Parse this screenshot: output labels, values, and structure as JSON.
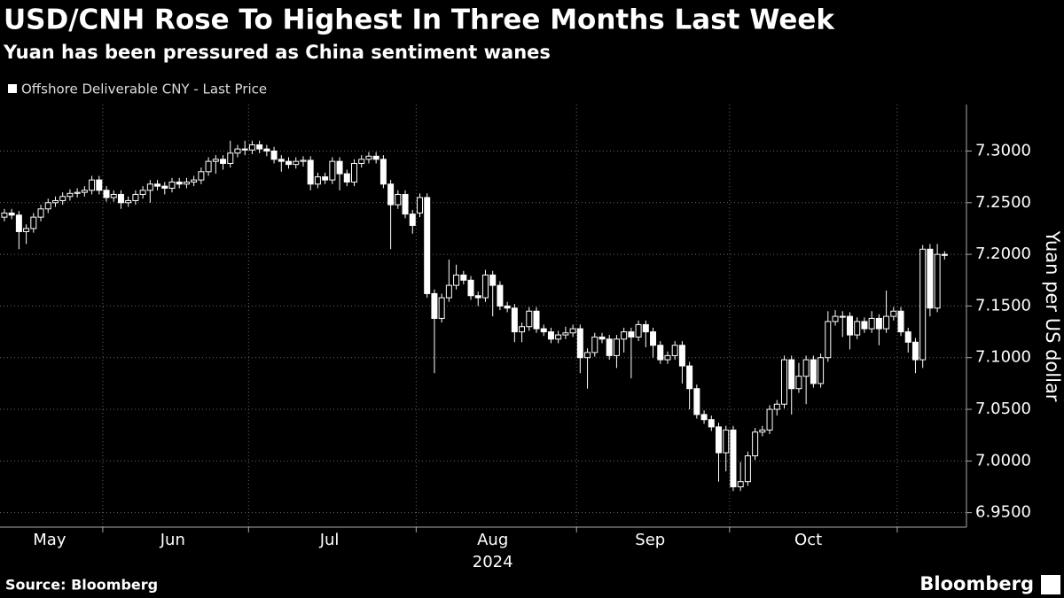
{
  "chart_data": {
    "type": "candlestick",
    "title": "USD/CNH Rose To Highest In Three Months Last Week",
    "subtitle": "Yuan has been pressured as China sentiment wanes",
    "y_label": "Yuan per US dollar",
    "source": "Source: Bloomberg",
    "brand": "Bloomberg",
    "grid": true,
    "xlim": [
      -0.6,
      132
    ],
    "ylim": [
      6.936,
      7.345
    ],
    "yticks": [
      {
        "value": 6.95,
        "label": "6.9500"
      },
      {
        "value": 7.0,
        "label": "7.0000"
      },
      {
        "value": 7.05,
        "label": "7.0500"
      },
      {
        "value": 7.1,
        "label": "7.1000"
      },
      {
        "value": 7.15,
        "label": "7.1500"
      },
      {
        "value": 7.2,
        "label": "7.2000"
      },
      {
        "value": 7.25,
        "label": "7.2500"
      },
      {
        "value": 7.3,
        "label": "7.3000"
      }
    ],
    "xticks": [
      13.5,
      33.5,
      56.5,
      78.5,
      99.5,
      122.5
    ],
    "xlabels": [
      {
        "value": 6.2,
        "label": "May"
      },
      {
        "value": 23.1,
        "label": "Jun"
      },
      {
        "value": 44.6,
        "label": "Jul"
      },
      {
        "value": 67,
        "label": "Aug"
      },
      {
        "value": 88.6,
        "label": "Sep"
      },
      {
        "value": 110.3,
        "label": "Oct"
      }
    ],
    "year_label": {
      "value": 67,
      "label": "2024"
    },
    "series": [
      {
        "name": "Offshore Deliverable CNY - Last Price",
        "color": "#ffffff",
        "open": [
          7.236,
          7.24,
          7.238,
          7.222,
          7.225,
          7.236,
          7.244,
          7.25,
          7.252,
          7.256,
          7.259,
          7.26,
          7.262,
          7.272,
          7.262,
          7.255,
          7.258,
          7.25,
          7.252,
          7.258,
          7.262,
          7.268,
          7.266,
          7.264,
          7.27,
          7.268,
          7.27,
          7.272,
          7.28,
          7.29,
          7.292,
          7.288,
          7.298,
          7.302,
          7.301,
          7.306,
          7.302,
          7.3,
          7.292,
          7.29,
          7.287,
          7.29,
          7.291,
          7.268,
          7.275,
          7.272,
          7.29,
          7.278,
          7.27,
          7.288,
          7.292,
          7.295,
          7.292,
          7.268,
          7.248,
          7.258,
          7.239,
          7.24,
          7.255,
          7.162,
          7.138,
          7.158,
          7.17,
          7.18,
          7.175,
          7.16,
          7.158,
          7.18,
          7.17,
          7.15,
          7.148,
          7.125,
          7.13,
          7.145,
          7.128,
          7.125,
          7.118,
          7.122,
          7.124,
          7.128,
          7.1,
          7.105,
          7.12,
          7.118,
          7.102,
          7.118,
          7.125,
          7.12,
          7.132,
          7.125,
          7.112,
          7.098,
          7.102,
          7.112,
          7.092,
          7.07,
          7.045,
          7.04,
          7.033,
          7.008,
          7.03,
          6.975,
          6.98,
          7.005,
          7.028,
          7.03,
          7.05,
          7.055,
          7.098,
          7.07,
          7.082,
          7.098,
          7.075,
          7.1,
          7.135,
          7.14,
          7.14,
          7.122,
          7.135,
          7.128,
          7.138,
          7.128,
          7.14,
          7.145,
          7.125,
          7.115,
          7.098,
          7.205,
          7.148,
          7.2
        ],
        "high": [
          7.244,
          7.244,
          7.242,
          7.229,
          7.24,
          7.248,
          7.254,
          7.256,
          7.26,
          7.263,
          7.264,
          7.266,
          7.276,
          7.276,
          7.266,
          7.262,
          7.262,
          7.256,
          7.262,
          7.266,
          7.272,
          7.272,
          7.27,
          7.274,
          7.274,
          7.274,
          7.276,
          7.284,
          7.294,
          7.296,
          7.296,
          7.31,
          7.306,
          7.31,
          7.31,
          7.31,
          7.306,
          7.304,
          7.296,
          7.294,
          7.294,
          7.295,
          7.295,
          7.279,
          7.279,
          7.294,
          7.294,
          7.282,
          7.292,
          7.296,
          7.299,
          7.299,
          7.296,
          7.272,
          7.262,
          7.262,
          7.243,
          7.259,
          7.259,
          7.166,
          7.162,
          7.195,
          7.19,
          7.184,
          7.179,
          7.164,
          7.185,
          7.184,
          7.174,
          7.154,
          7.152,
          7.134,
          7.149,
          7.149,
          7.132,
          7.129,
          7.126,
          7.13,
          7.132,
          7.132,
          7.109,
          7.124,
          7.124,
          7.122,
          7.122,
          7.129,
          7.129,
          7.136,
          7.136,
          7.129,
          7.116,
          7.106,
          7.116,
          7.116,
          7.096,
          7.074,
          7.049,
          7.044,
          7.037,
          7.034,
          7.034,
          6.999,
          7.009,
          7.032,
          7.034,
          7.054,
          7.059,
          7.102,
          7.102,
          7.095,
          7.102,
          7.102,
          7.104,
          7.145,
          7.146,
          7.145,
          7.144,
          7.139,
          7.139,
          7.145,
          7.142,
          7.165,
          7.149,
          7.149,
          7.129,
          7.119,
          7.209,
          7.21,
          7.21,
          7.203
        ],
        "low": [
          7.232,
          7.234,
          7.205,
          7.21,
          7.221,
          7.232,
          7.24,
          7.246,
          7.248,
          7.252,
          7.255,
          7.256,
          7.258,
          7.258,
          7.251,
          7.251,
          7.244,
          7.246,
          7.248,
          7.254,
          7.25,
          7.262,
          7.258,
          7.26,
          7.264,
          7.264,
          7.266,
          7.268,
          7.276,
          7.278,
          7.282,
          7.284,
          7.294,
          7.296,
          7.297,
          7.298,
          7.295,
          7.288,
          7.28,
          7.283,
          7.283,
          7.285,
          7.262,
          7.264,
          7.268,
          7.268,
          7.262,
          7.266,
          7.266,
          7.284,
          7.288,
          7.288,
          7.264,
          7.205,
          7.244,
          7.235,
          7.22,
          7.236,
          7.158,
          7.085,
          7.134,
          7.154,
          7.166,
          7.171,
          7.156,
          7.15,
          7.154,
          7.14,
          7.146,
          7.144,
          7.115,
          7.115,
          7.126,
          7.124,
          7.121,
          7.114,
          7.114,
          7.118,
          7.12,
          7.085,
          7.07,
          7.101,
          7.114,
          7.098,
          7.09,
          7.105,
          7.08,
          7.116,
          7.11,
          7.1,
          7.094,
          7.094,
          7.098,
          7.075,
          7.05,
          7.041,
          7.036,
          7.029,
          6.98,
          6.99,
          6.971,
          6.971,
          6.976,
          7.001,
          7.024,
          7.026,
          7.044,
          7.051,
          7.045,
          7.066,
          7.055,
          7.071,
          7.071,
          7.096,
          7.131,
          7.12,
          7.108,
          7.118,
          7.124,
          7.124,
          7.112,
          7.124,
          7.136,
          7.121,
          7.105,
          7.085,
          7.09,
          7.14,
          7.144,
          7.195
        ],
        "close": [
          7.24,
          7.238,
          7.222,
          7.225,
          7.236,
          7.244,
          7.25,
          7.252,
          7.256,
          7.259,
          7.26,
          7.262,
          7.272,
          7.262,
          7.255,
          7.258,
          7.25,
          7.252,
          7.258,
          7.262,
          7.268,
          7.266,
          7.264,
          7.27,
          7.268,
          7.27,
          7.272,
          7.28,
          7.29,
          7.292,
          7.288,
          7.298,
          7.302,
          7.301,
          7.306,
          7.302,
          7.3,
          7.292,
          7.29,
          7.287,
          7.29,
          7.291,
          7.268,
          7.275,
          7.272,
          7.29,
          7.278,
          7.27,
          7.288,
          7.292,
          7.295,
          7.292,
          7.268,
          7.248,
          7.258,
          7.239,
          7.228,
          7.255,
          7.162,
          7.138,
          7.158,
          7.17,
          7.18,
          7.175,
          7.16,
          7.158,
          7.18,
          7.17,
          7.15,
          7.148,
          7.125,
          7.13,
          7.145,
          7.128,
          7.125,
          7.118,
          7.122,
          7.124,
          7.128,
          7.1,
          7.105,
          7.12,
          7.118,
          7.102,
          7.118,
          7.125,
          7.12,
          7.132,
          7.125,
          7.112,
          7.098,
          7.102,
          7.112,
          7.092,
          7.07,
          7.045,
          7.04,
          7.033,
          7.008,
          7.03,
          6.975,
          6.98,
          7.005,
          7.028,
          7.03,
          7.05,
          7.055,
          7.098,
          7.07,
          7.082,
          7.098,
          7.075,
          7.1,
          7.135,
          7.14,
          7.14,
          7.122,
          7.135,
          7.128,
          7.138,
          7.128,
          7.14,
          7.145,
          7.125,
          7.115,
          7.098,
          7.205,
          7.148,
          7.2,
          7.199
        ]
      }
    ]
  }
}
